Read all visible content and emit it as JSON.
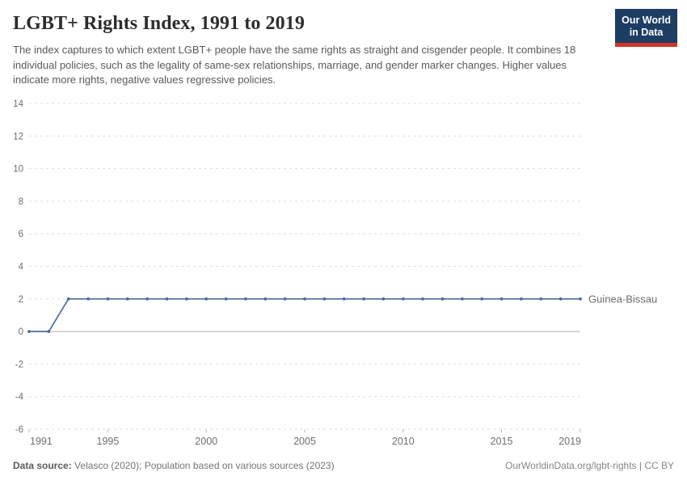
{
  "header": {
    "title": "LGBT+ Rights Index, 1991 to 2019",
    "subtitle": "The index captures to which extent LGBT+ people have the same rights as straight and cisgender people. It combines 18 individual policies, such as the legality of same-sex relationships, marriage, and gender marker changes. Higher values indicate more rights, negative values regressive policies.",
    "logo": {
      "line1": "Our World",
      "line2": "in Data"
    }
  },
  "footer": {
    "datasource_label": "Data source:",
    "datasource_text": "Velasco (2020); Population based on various sources (2023)",
    "license_text": "OurWorldinData.org/lgbt-rights | CC BY"
  },
  "colors": {
    "line": "#4C6A9C",
    "entity_label": "#4C6A9C",
    "grid": "#dedede",
    "zero_line": "#b0b0b0",
    "axis_text": "#6e6e6e",
    "tick_mark": "#bbbbbb",
    "logo_bg": "#1d3d63",
    "logo_stripe": "#d0342c"
  },
  "chart_data": {
    "type": "line",
    "title": "LGBT+ Rights Index, 1991 to 2019",
    "xlabel": "",
    "ylabel": "",
    "xlim": [
      1991,
      2019
    ],
    "ylim": [
      -6,
      14
    ],
    "grid": true,
    "x_ticks": [
      1991,
      1995,
      2000,
      2005,
      2010,
      2015,
      2019
    ],
    "y_ticks": [
      14,
      12,
      10,
      8,
      6,
      4,
      2,
      0,
      -2,
      -4,
      -6
    ],
    "legend_position": "end-of-line-label",
    "series": [
      {
        "name": "Guinea-Bissau",
        "x": [
          1991,
          1992,
          1993,
          1994,
          1995,
          1996,
          1997,
          1998,
          1999,
          2000,
          2001,
          2002,
          2003,
          2004,
          2005,
          2006,
          2007,
          2008,
          2009,
          2010,
          2011,
          2012,
          2013,
          2014,
          2015,
          2016,
          2017,
          2018,
          2019
        ],
        "values": [
          0,
          0,
          2,
          2,
          2,
          2,
          2,
          2,
          2,
          2,
          2,
          2,
          2,
          2,
          2,
          2,
          2,
          2,
          2,
          2,
          2,
          2,
          2,
          2,
          2,
          2,
          2,
          2,
          2
        ]
      }
    ]
  }
}
